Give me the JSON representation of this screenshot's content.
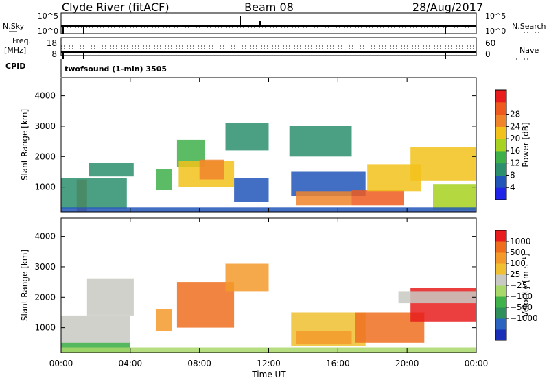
{
  "header": {
    "station": "Clyde River (fitACF)",
    "beam": "Beam 08",
    "date": "28/Aug/2017"
  },
  "noise_panel": {
    "left_label": "N.Sky",
    "right_label": "N.Search",
    "left_ticks": [
      "10^5",
      "10^0"
    ],
    "right_ticks": [
      "10^5",
      "10^0"
    ]
  },
  "freq_panel": {
    "left_label_1": "Freq.",
    "left_label_2": "[MHz]",
    "right_label": "Nave",
    "left_ticks": [
      "18",
      "8"
    ],
    "right_ticks": [
      "60",
      "0"
    ]
  },
  "cpid": {
    "label": "CPID",
    "text": "twofsound (1-min) 3505"
  },
  "chart_data": [
    {
      "type": "heatmap",
      "title": "",
      "ylabel": "Slant Range [km]",
      "xlabel": "Time UT",
      "x_ticks": [
        "00:00",
        "04:00",
        "08:00",
        "12:00",
        "16:00",
        "20:00",
        "00:00"
      ],
      "xlim_hours": [
        0,
        24
      ],
      "y_ticks": [
        1000,
        2000,
        3000,
        4000
      ],
      "ylim": [
        180,
        4600
      ],
      "colorbar": {
        "label": "Power [dB]",
        "ticks": [
          "4",
          "8",
          "12",
          "16",
          "20",
          "24",
          "28"
        ],
        "levels": [
          0,
          4,
          8,
          12,
          16,
          20,
          24,
          28,
          32
        ],
        "colors": [
          "#1f24e8",
          "#2155b8",
          "#2b8f6e",
          "#3eb04a",
          "#a7d21f",
          "#f2c21a",
          "#f0842a",
          "#ee5a1e",
          "#e81c1c"
        ]
      },
      "regions": [
        {
          "t0": 0.9,
          "t1": 1.5,
          "r0": 200,
          "r1": 1250,
          "level": 7
        },
        {
          "t0": 0.0,
          "t1": 3.8,
          "r0": 300,
          "r1": 1300,
          "level": 2
        },
        {
          "t0": 1.6,
          "t1": 4.2,
          "r0": 1350,
          "r1": 1800,
          "level": 2
        },
        {
          "t0": 5.5,
          "t1": 6.4,
          "r0": 900,
          "r1": 1600,
          "level": 3
        },
        {
          "t0": 6.7,
          "t1": 8.3,
          "r0": 1650,
          "r1": 2550,
          "level": 3
        },
        {
          "t0": 6.8,
          "t1": 10.0,
          "r0": 1000,
          "r1": 1850,
          "level": 5
        },
        {
          "t0": 8.0,
          "t1": 9.4,
          "r0": 1250,
          "r1": 1900,
          "level": 6
        },
        {
          "t0": 9.5,
          "t1": 12.0,
          "r0": 2200,
          "r1": 3100,
          "level": 2
        },
        {
          "t0": 10.0,
          "t1": 12.0,
          "r0": 500,
          "r1": 1300,
          "level": 1
        },
        {
          "t0": 13.2,
          "t1": 16.8,
          "r0": 2000,
          "r1": 3000,
          "level": 2
        },
        {
          "t0": 13.3,
          "t1": 17.6,
          "r0": 700,
          "r1": 1500,
          "level": 1
        },
        {
          "t0": 13.6,
          "t1": 16.8,
          "r0": 400,
          "r1": 850,
          "level": 6
        },
        {
          "t0": 16.8,
          "t1": 19.8,
          "r0": 400,
          "r1": 900,
          "level": 7
        },
        {
          "t0": 17.7,
          "t1": 20.8,
          "r0": 850,
          "r1": 1750,
          "level": 5
        },
        {
          "t0": 20.2,
          "t1": 24.0,
          "r0": 1200,
          "r1": 2300,
          "level": 5
        },
        {
          "t0": 21.5,
          "t1": 24.0,
          "r0": 250,
          "r1": 1100,
          "level": 4
        },
        {
          "t0": 0.0,
          "t1": 24.0,
          "r0": 180,
          "r1": 330,
          "level": 1
        }
      ]
    },
    {
      "type": "heatmap",
      "title": "",
      "ylabel": "Slant Range [km]",
      "xlabel": "Time UT",
      "x_ticks": [
        "00:00",
        "04:00",
        "08:00",
        "12:00",
        "16:00",
        "20:00",
        "00:00"
      ],
      "xlim_hours": [
        0,
        24
      ],
      "y_ticks": [
        1000,
        2000,
        3000,
        4000
      ],
      "ylim": [
        180,
        4600
      ],
      "colorbar": {
        "label": "Velocity [m s⁻¹]",
        "ticks": [
          "1000",
          "500",
          "100",
          "25",
          "−25",
          "−100",
          "−500",
          "−1000"
        ],
        "colors": [
          "#1a2fb8",
          "#2a63c0",
          "#2e8f5a",
          "#3fb34a",
          "#a8d86a",
          "#c9c9c3",
          "#f0c030",
          "#f39a2a",
          "#ef6e1e",
          "#e81c1c"
        ]
      },
      "regions": [
        {
          "t0": 0.0,
          "t1": 4.0,
          "r0": 200,
          "r1": 1400,
          "level": 5
        },
        {
          "t0": 0.0,
          "t1": 4.0,
          "r0": 200,
          "r1": 500,
          "level": 3
        },
        {
          "t0": 1.5,
          "t1": 4.2,
          "r0": 1400,
          "r1": 2600,
          "level": 5
        },
        {
          "t0": 5.5,
          "t1": 6.4,
          "r0": 900,
          "r1": 1600,
          "level": 7
        },
        {
          "t0": 6.7,
          "t1": 10.0,
          "r0": 1000,
          "r1": 2500,
          "level": 8
        },
        {
          "t0": 9.5,
          "t1": 12.0,
          "r0": 2200,
          "r1": 3100,
          "level": 7
        },
        {
          "t0": 13.3,
          "t1": 17.6,
          "r0": 400,
          "r1": 1500,
          "level": 6
        },
        {
          "t0": 13.6,
          "t1": 16.8,
          "r0": 450,
          "r1": 900,
          "level": 7
        },
        {
          "t0": 17.0,
          "t1": 21.0,
          "r0": 500,
          "r1": 1500,
          "level": 8
        },
        {
          "t0": 20.2,
          "t1": 24.0,
          "r0": 1200,
          "r1": 2300,
          "level": 9
        },
        {
          "t0": 19.5,
          "t1": 24.0,
          "r0": 1800,
          "r1": 2200,
          "level": 5
        },
        {
          "t0": 0.0,
          "t1": 24.0,
          "r0": 180,
          "r1": 350,
          "level": 4
        }
      ]
    }
  ]
}
